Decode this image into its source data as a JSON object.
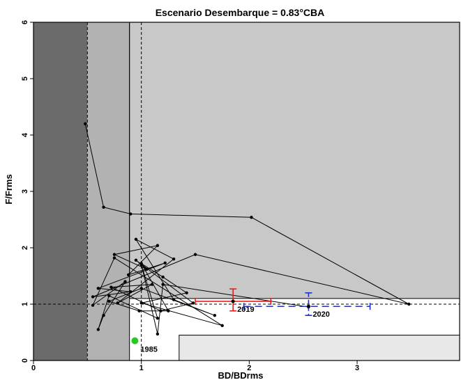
{
  "chart_data": {
    "type": "scatter",
    "title": "Escenario Desembarque = 0.83°CBA",
    "xlabel": "BD/BDrms",
    "ylabel": "F/Frms",
    "xlim": [
      0,
      3.95
    ],
    "ylim": [
      0,
      6
    ],
    "x_ticks": [
      0,
      1,
      2,
      3
    ],
    "y_ticks": [
      0,
      1,
      2,
      3,
      4,
      5,
      6
    ],
    "grid": false,
    "reference_lines": {
      "vertical_dashed": [
        0.5,
        1.0
      ],
      "vertical_solid": [
        0.89
      ],
      "horizontal_dashed": [
        1.0
      ]
    },
    "zones": [
      {
        "x": [
          0,
          0.5
        ],
        "y": [
          0,
          6
        ],
        "color": "#6b6b6b"
      },
      {
        "x": [
          0.5,
          0.89
        ],
        "y": [
          0,
          6
        ],
        "color": "#b2b2b2"
      },
      {
        "x": [
          0.89,
          3.95
        ],
        "y": [
          1.1,
          6
        ],
        "color": "#c8c8c8"
      },
      {
        "x": [
          1.35,
          3.95
        ],
        "y": [
          0,
          0.45
        ],
        "color": "#e8e8e8"
      }
    ],
    "trajectory": [
      {
        "x": 0.48,
        "y": 4.2
      },
      {
        "x": 0.65,
        "y": 2.72
      },
      {
        "x": 0.9,
        "y": 2.6
      },
      {
        "x": 2.02,
        "y": 2.54
      },
      {
        "x": 3.48,
        "y": 1.0
      },
      {
        "x": 1.5,
        "y": 1.88
      },
      {
        "x": 0.55,
        "y": 1.13
      },
      {
        "x": 0.9,
        "y": 1.22
      },
      {
        "x": 0.6,
        "y": 1.28
      },
      {
        "x": 1.22,
        "y": 1.73
      },
      {
        "x": 0.88,
        "y": 1.52
      },
      {
        "x": 1.15,
        "y": 2.04
      },
      {
        "x": 0.75,
        "y": 1.88
      },
      {
        "x": 1.05,
        "y": 1.62
      },
      {
        "x": 0.95,
        "y": 1.78
      },
      {
        "x": 1.48,
        "y": 1.02
      },
      {
        "x": 1.18,
        "y": 0.88
      },
      {
        "x": 0.72,
        "y": 1.3
      },
      {
        "x": 1.1,
        "y": 1.35
      },
      {
        "x": 0.78,
        "y": 1.02
      },
      {
        "x": 1.3,
        "y": 1.8
      },
      {
        "x": 0.95,
        "y": 2.15
      },
      {
        "x": 1.3,
        "y": 1.08
      },
      {
        "x": 1.68,
        "y": 0.8
      },
      {
        "x": 1.0,
        "y": 1.28
      },
      {
        "x": 0.7,
        "y": 1.05
      },
      {
        "x": 0.98,
        "y": 0.88
      },
      {
        "x": 1.25,
        "y": 0.88
      },
      {
        "x": 1.0,
        "y": 1.72
      },
      {
        "x": 1.2,
        "y": 1.48
      },
      {
        "x": 1.42,
        "y": 1.2
      },
      {
        "x": 1.0,
        "y": 1.02
      },
      {
        "x": 1.75,
        "y": 0.62
      },
      {
        "x": 0.75,
        "y": 1.82
      },
      {
        "x": 0.55,
        "y": 0.98
      },
      {
        "x": 0.85,
        "y": 1.4
      },
      {
        "x": 0.65,
        "y": 0.8
      },
      {
        "x": 0.6,
        "y": 0.55
      },
      {
        "x": 0.7,
        "y": 1.15
      },
      {
        "x": 1.15,
        "y": 0.75
      },
      {
        "x": 1.0,
        "y": 1.7
      },
      {
        "x": 1.15,
        "y": 0.47
      },
      {
        "x": 1.2,
        "y": 1.35
      },
      {
        "x": 2.55,
        "y": 0.95
      }
    ],
    "start_point": {
      "label": "1985",
      "x": 0.94,
      "y": 0.35,
      "color": "#22cc22"
    },
    "projections": [
      {
        "label": "2019",
        "x": 1.85,
        "y": 1.05,
        "x_range": [
          1.5,
          2.2
        ],
        "y_range": [
          0.88,
          1.27
        ],
        "color": "#e02020",
        "line": "solid"
      },
      {
        "label": "2020",
        "x": 2.55,
        "y": 0.96,
        "x_range": [
          1.95,
          3.12
        ],
        "y_range": [
          0.8,
          1.2
        ],
        "color": "#2030c0",
        "line": "dashed"
      }
    ]
  }
}
